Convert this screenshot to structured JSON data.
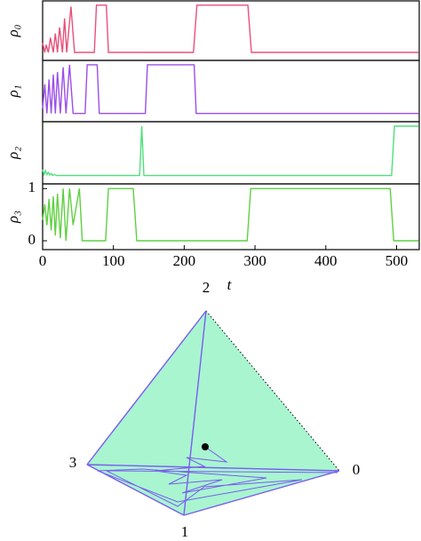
{
  "chart_data": [
    {
      "type": "line",
      "y_label": "ρ₀",
      "xlim": [
        0,
        532
      ],
      "ylim": [
        -0.17,
        1.09
      ],
      "color": "#e8507a",
      "x": [
        0,
        3,
        5,
        8,
        11,
        15,
        18,
        21,
        24,
        28,
        31,
        34,
        40,
        45,
        73,
        76,
        90,
        93,
        213,
        218,
        290,
        295,
        531
      ],
      "values": [
        0.2,
        0,
        0.16,
        0,
        0.31,
        0,
        0.4,
        0,
        0.53,
        0,
        0.72,
        0,
        0.97,
        0,
        0,
        1,
        1,
        0,
        0,
        1,
        1,
        0,
        0
      ]
    },
    {
      "type": "line",
      "y_label": "ρ₁",
      "xlim": [
        0,
        532
      ],
      "ylim": [
        -0.17,
        1.09
      ],
      "color": "#9b4fe8",
      "x": [
        0,
        3,
        6,
        9,
        12,
        15,
        18,
        21,
        25,
        29,
        33,
        38,
        43,
        60,
        63,
        77,
        80,
        145,
        148,
        214,
        217,
        531
      ],
      "values": [
        0.1,
        0.6,
        0,
        0.7,
        0,
        0.8,
        0,
        0.85,
        0,
        0.95,
        0,
        1,
        0,
        0,
        1,
        1,
        0,
        0,
        1,
        1,
        0,
        0
      ]
    },
    {
      "type": "line",
      "y_label": "ρ₂",
      "xlim": [
        0,
        532
      ],
      "ylim": [
        -0.17,
        1.09
      ],
      "color": "#4fe07a",
      "x": [
        0,
        2,
        4,
        6,
        8,
        10,
        12,
        14,
        17,
        20,
        137,
        140,
        143,
        493,
        497,
        531
      ],
      "values": [
        0.12,
        0.02,
        0.1,
        0.02,
        0.06,
        0.01,
        0.04,
        0,
        0.02,
        0,
        0,
        1,
        0,
        0,
        1,
        1
      ]
    },
    {
      "type": "line",
      "y_label": "ρ₃",
      "x_label": "t",
      "xlim": [
        0,
        532
      ],
      "ylim": [
        -0.17,
        1.09
      ],
      "color": "#5fd040",
      "xticks": [
        0,
        100,
        200,
        300,
        400,
        500
      ],
      "yticks": [
        0,
        1
      ],
      "x": [
        0,
        3,
        6,
        9,
        12,
        15,
        18,
        21,
        25,
        29,
        33,
        38,
        43,
        52,
        56,
        89,
        93,
        128,
        133,
        289,
        294,
        491,
        496,
        531
      ],
      "values": [
        0.4,
        0.7,
        0.3,
        0.8,
        0.2,
        0.85,
        0.1,
        0.9,
        0.05,
        1,
        0,
        1,
        0.3,
        1,
        0,
        0,
        1,
        1,
        0,
        0,
        1,
        1,
        0,
        0
      ]
    }
  ],
  "simplex": {
    "vertex_labels": [
      "2",
      "3",
      "0",
      "1"
    ]
  }
}
